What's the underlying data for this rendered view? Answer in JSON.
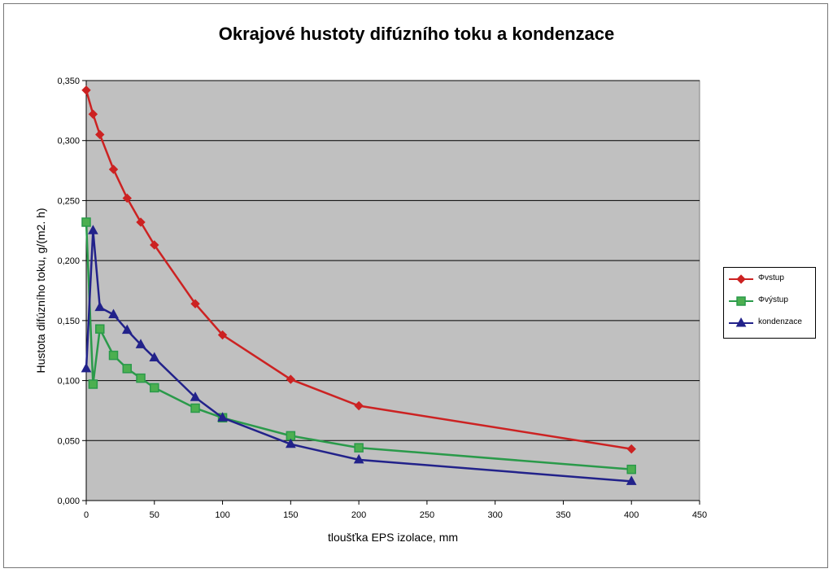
{
  "chart_data": {
    "type": "line",
    "title": "Okrajové hustoty difúzního toku a kondenzace",
    "xlabel": "tloušťka EPS izolace, mm",
    "ylabel": "Hustota difúzního toku, g/(m2. h)",
    "xlim": [
      0,
      450
    ],
    "ylim": [
      0,
      0.35
    ],
    "xticks": [
      "0",
      "50",
      "100",
      "150",
      "200",
      "250",
      "300",
      "350",
      "400",
      "450"
    ],
    "yticks": [
      "0,000",
      "0,050",
      "0,100",
      "0,150",
      "0,200",
      "0,250",
      "0,300",
      "0,350"
    ],
    "grid": "horizontal",
    "legend_position": "right",
    "plot_background": "#c0c0c0",
    "series": [
      {
        "name": "Φvstup",
        "color": "#cc2222",
        "marker": "diamond",
        "x": [
          0,
          5,
          10,
          20,
          30,
          40,
          50,
          80,
          100,
          150,
          200,
          400
        ],
        "y": [
          0.342,
          0.322,
          0.305,
          0.276,
          0.252,
          0.232,
          0.213,
          0.164,
          0.138,
          0.101,
          0.079,
          0.043
        ]
      },
      {
        "name": "Φvýstup",
        "color": "#2a9a4a",
        "marker": "square",
        "x": [
          0,
          5,
          10,
          20,
          30,
          40,
          50,
          80,
          100,
          150,
          200,
          400
        ],
        "y": [
          0.232,
          0.097,
          0.143,
          0.121,
          0.11,
          0.102,
          0.094,
          0.077,
          0.069,
          0.054,
          0.044,
          0.026
        ]
      },
      {
        "name": "kondenzace",
        "color": "#22228a",
        "marker": "triangle",
        "x": [
          0,
          5,
          10,
          20,
          30,
          40,
          50,
          80,
          100,
          150,
          200,
          400
        ],
        "y": [
          0.11,
          0.225,
          0.161,
          0.155,
          0.142,
          0.13,
          0.119,
          0.086,
          0.069,
          0.047,
          0.034,
          0.016
        ]
      }
    ]
  }
}
